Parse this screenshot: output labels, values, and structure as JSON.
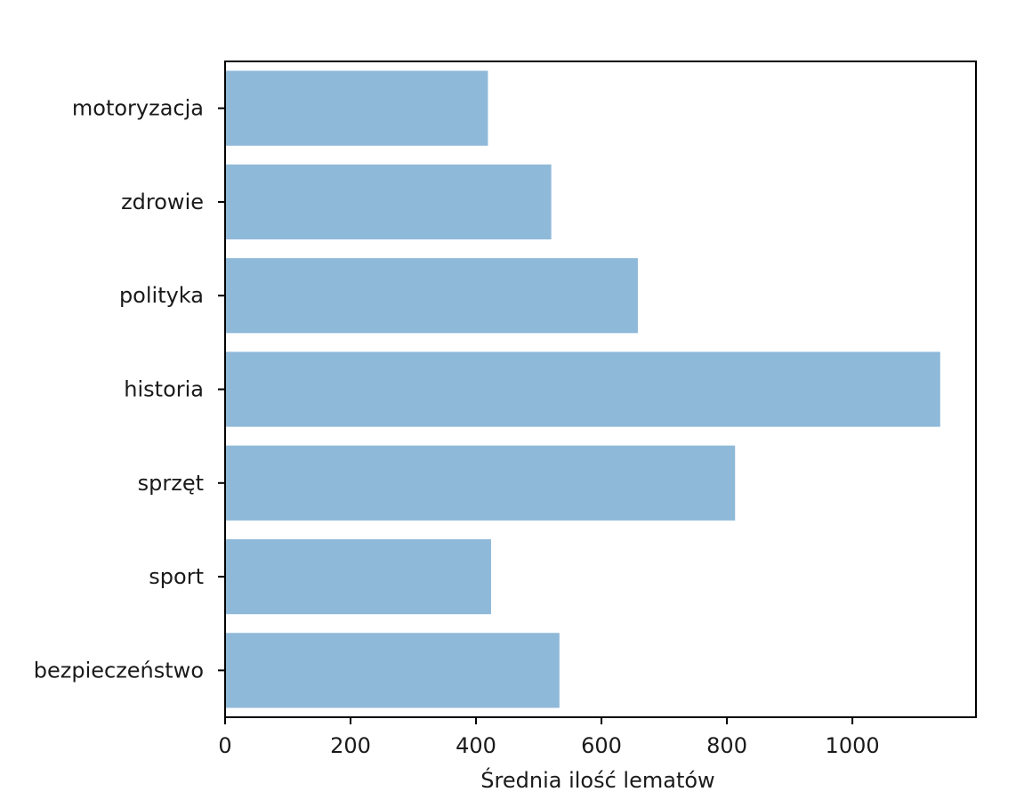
{
  "chart_data": {
    "type": "bar",
    "orientation": "horizontal",
    "categories": [
      "bezpieczeństwo",
      "sport",
      "sprzęt",
      "historia",
      "polityka",
      "zdrowie",
      "motoryzacja"
    ],
    "values": [
      533,
      424,
      813,
      1140,
      658,
      520,
      419
    ],
    "title": "",
    "xlabel": "Średnia ilość lematów",
    "ylabel": "",
    "xlim": [
      0,
      1197
    ],
    "xticks": [
      0,
      200,
      400,
      600,
      800,
      1000
    ],
    "xtick_labels": [
      "0",
      "200",
      "400",
      "600",
      "800",
      "1000"
    ],
    "bar_color": "#8fb9d9",
    "grid": false,
    "legend": "none"
  }
}
